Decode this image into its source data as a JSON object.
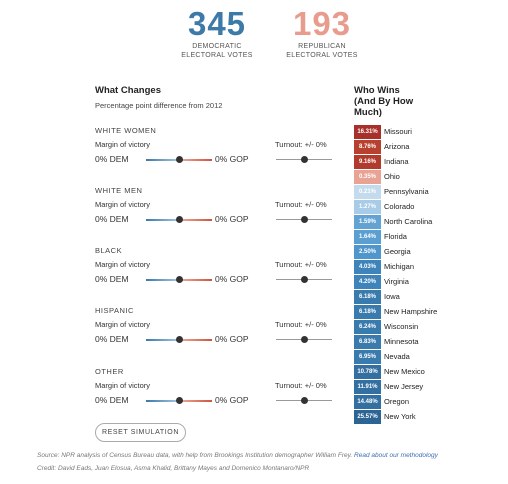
{
  "totals": {
    "dem": {
      "value": "345",
      "label_line1": "DEMOCRATIC",
      "label_line2": "ELECTORAL VOTES",
      "color": "#3d7aa8"
    },
    "rep": {
      "value": "193",
      "label_line1": "REPUBLICAN",
      "label_line2": "ELECTORAL VOTES",
      "color": "#e89c8e"
    }
  },
  "what_changes": {
    "title": "What Changes",
    "subtitle": "Percentage point difference from 2012"
  },
  "groups": [
    {
      "name": "WHITE WOMEN",
      "margin_label": "Margin of victory",
      "dem_value": "0% DEM",
      "gop_value": "0% GOP",
      "margin_slider": 0.5,
      "turnout_label": "Turnout: +/- 0%",
      "turnout_slider": 0.5
    },
    {
      "name": "WHITE MEN",
      "margin_label": "Margin of victory",
      "dem_value": "0% DEM",
      "gop_value": "0% GOP",
      "margin_slider": 0.5,
      "turnout_label": "Turnout: +/- 0%",
      "turnout_slider": 0.5
    },
    {
      "name": "BLACK",
      "margin_label": "Margin of victory",
      "dem_value": "0% DEM",
      "gop_value": "0% GOP",
      "margin_slider": 0.5,
      "turnout_label": "Turnout: +/- 0%",
      "turnout_slider": 0.5
    },
    {
      "name": "HISPANIC",
      "margin_label": "Margin of victory",
      "dem_value": "0% DEM",
      "gop_value": "0% GOP",
      "margin_slider": 0.5,
      "turnout_label": "Turnout: +/- 0%",
      "turnout_slider": 0.5
    },
    {
      "name": "OTHER",
      "margin_label": "Margin of victory",
      "dem_value": "0% DEM",
      "gop_value": "0% GOP",
      "margin_slider": 0.5,
      "turnout_label": "Turnout: +/- 0%",
      "turnout_slider": 0.5
    }
  ],
  "reset_label": "RESET SIMULATION",
  "who_wins": {
    "title_line1": "Who Wins",
    "title_line2": "(And By How",
    "title_line3": "Much)",
    "states": [
      {
        "margin": "16.31%",
        "name": "Missouri",
        "color": "#a9302a"
      },
      {
        "margin": "8.76%",
        "name": "Arizona",
        "color": "#b8402f"
      },
      {
        "margin": "9.16%",
        "name": "Indiana",
        "color": "#b13a2d"
      },
      {
        "margin": "0.35%",
        "name": "Ohio",
        "color": "#e9a394"
      },
      {
        "margin": "0.21%",
        "name": "Pennsylvania",
        "color": "#c4dbee"
      },
      {
        "margin": "1.27%",
        "name": "Colorado",
        "color": "#a8cbe8"
      },
      {
        "margin": "1.59%",
        "name": "North Carolina",
        "color": "#62a3d4"
      },
      {
        "margin": "1.64%",
        "name": "Florida",
        "color": "#5b9ed2"
      },
      {
        "margin": "2.50%",
        "name": "Georgia",
        "color": "#4f96cd"
      },
      {
        "margin": "4.03%",
        "name": "Michigan",
        "color": "#3e84ba"
      },
      {
        "margin": "4.20%",
        "name": "Virginia",
        "color": "#3e84ba"
      },
      {
        "margin": "6.18%",
        "name": "Iowa",
        "color": "#3a7bae"
      },
      {
        "margin": "6.18%",
        "name": "New Hampshire",
        "color": "#3a7bae"
      },
      {
        "margin": "6.24%",
        "name": "Wisconsin",
        "color": "#3a7bae"
      },
      {
        "margin": "6.83%",
        "name": "Minnesota",
        "color": "#3a7bae"
      },
      {
        "margin": "6.95%",
        "name": "Nevada",
        "color": "#3a7bae"
      },
      {
        "margin": "10.78%",
        "name": "New Mexico",
        "color": "#336fa0"
      },
      {
        "margin": "11.91%",
        "name": "New Jersey",
        "color": "#336fa0"
      },
      {
        "margin": "14.48%",
        "name": "Oregon",
        "color": "#336fa0"
      },
      {
        "margin": "25.57%",
        "name": "New York",
        "color": "#2c6494"
      }
    ]
  },
  "source": {
    "text": "Source: NPR analysis of Census Bureau data, with help from Brookings Institution demographer William Frey.",
    "link": "Read about our methodology"
  },
  "credit": "Credit: David Eads, Juan Elosua, Asma Khalid, Brittany Mayes and Domenico Montanaro/NPR"
}
